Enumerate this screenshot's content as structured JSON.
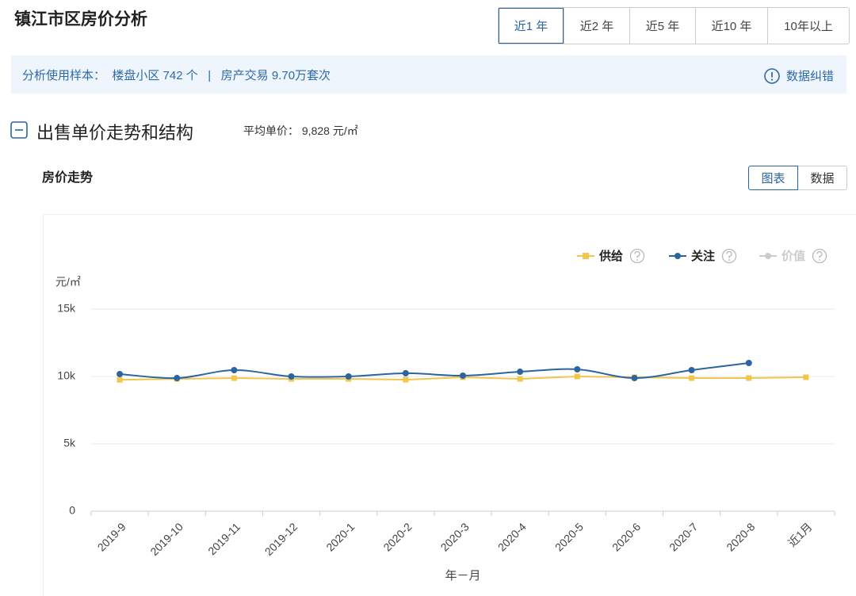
{
  "header": {
    "title": "镇江市区房价分析",
    "tabs": [
      "近1 年",
      "近2 年",
      "近5 年",
      "近10 年",
      "10年以上"
    ],
    "selected_tab": 0
  },
  "info_bar": {
    "sample_label": "分析使用样本：",
    "communities": "楼盘小区 742 个",
    "separator": "|",
    "transactions": "房产交易 9.70万套次",
    "correction": "数据纠错"
  },
  "section": {
    "title": "出售单价走势和结构",
    "avg_label": "平均单价：",
    "avg_value": "9,828 元/㎡"
  },
  "panel": {
    "toggle": [
      "图表",
      "数据"
    ],
    "selected_toggle": 0
  },
  "chart_data": {
    "type": "line",
    "title": "房价走势",
    "ylabel": "元/㎡",
    "xlabel": "年－月",
    "categories": [
      "2019-9",
      "2019-10",
      "2019-11",
      "2019-12",
      "2020-1",
      "2020-2",
      "2020-3",
      "2020-4",
      "2020-5",
      "2020-6",
      "2020-7",
      "2020-8",
      "近1月"
    ],
    "series": [
      {
        "name": "供给",
        "color": "#f2c54b",
        "marker": "square",
        "values": [
          9750,
          9820,
          9880,
          9820,
          9820,
          9760,
          9940,
          9820,
          10000,
          9940,
          9880,
          9880,
          9940
        ]
      },
      {
        "name": "关注",
        "color": "#2a65a0",
        "marker": "circle",
        "values": [
          10180,
          9880,
          10470,
          10000,
          10000,
          10240,
          10060,
          10350,
          10530,
          9880,
          10470,
          11000,
          null
        ]
      },
      {
        "name": "价值",
        "color": "#cccccc",
        "marker": "circle",
        "values": [
          null,
          null,
          null,
          null,
          null,
          null,
          null,
          null,
          null,
          null,
          null,
          null,
          null
        ]
      }
    ],
    "ylim": [
      0,
      15000
    ],
    "yticks": [
      {
        "value": 0,
        "label": "0"
      },
      {
        "value": 5000,
        "label": "5k"
      },
      {
        "value": 10000,
        "label": "10k"
      },
      {
        "value": 15000,
        "label": "15k"
      }
    ],
    "grid": true
  }
}
